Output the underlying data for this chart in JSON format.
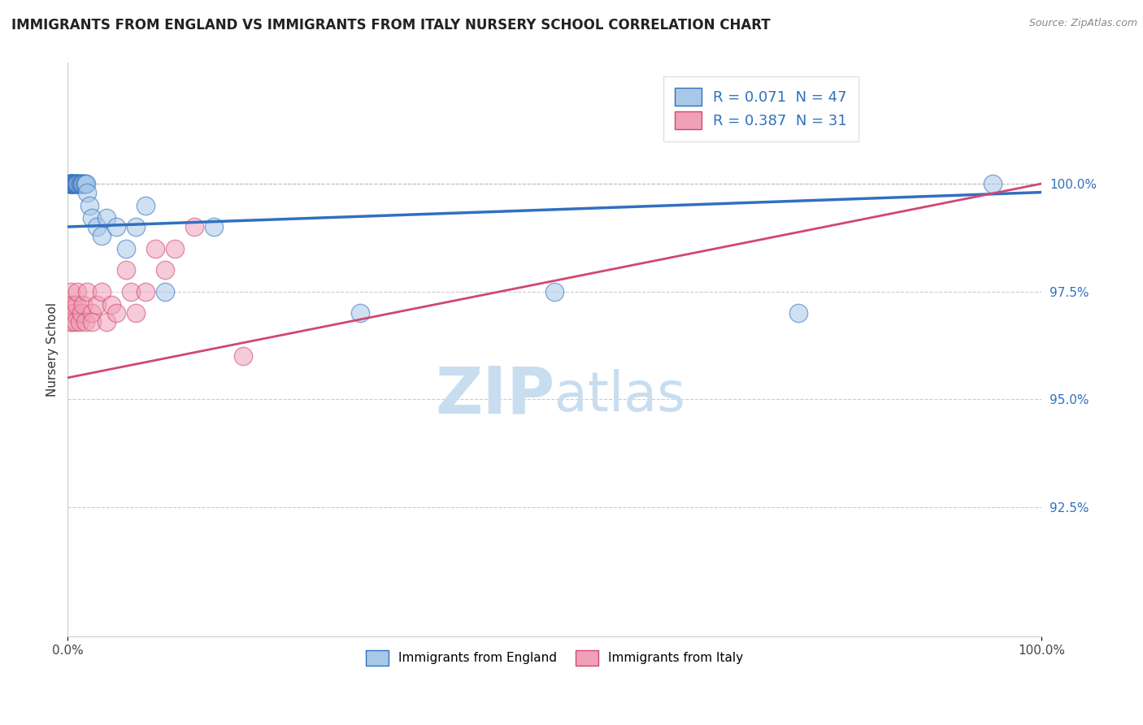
{
  "title": "IMMIGRANTS FROM ENGLAND VS IMMIGRANTS FROM ITALY NURSERY SCHOOL CORRELATION CHART",
  "source": "Source: ZipAtlas.com",
  "ylabel": "Nursery School",
  "england_R": 0.071,
  "england_N": 47,
  "italy_R": 0.387,
  "italy_N": 31,
  "england_color": "#a8c8e8",
  "italy_color": "#f0a0b8",
  "england_line_color": "#3070c0",
  "italy_line_color": "#d04870",
  "watermark_zip": "ZIP",
  "watermark_atlas": "atlas",
  "watermark_color": "#c8ddf0",
  "xmin": 0.0,
  "xmax": 1.0,
  "ymin": 0.895,
  "ymax": 1.028,
  "yticks": [
    0.925,
    0.95,
    0.975,
    1.0
  ],
  "ytick_labels": [
    "92.5%",
    "95.0%",
    "97.5%",
    "100.0%"
  ],
  "england_x": [
    0.001,
    0.002,
    0.002,
    0.003,
    0.003,
    0.003,
    0.004,
    0.004,
    0.004,
    0.005,
    0.005,
    0.006,
    0.006,
    0.007,
    0.007,
    0.008,
    0.008,
    0.009,
    0.009,
    0.01,
    0.01,
    0.011,
    0.012,
    0.013,
    0.014,
    0.015,
    0.015,
    0.016,
    0.017,
    0.018,
    0.019,
    0.02,
    0.022,
    0.025,
    0.03,
    0.035,
    0.04,
    0.05,
    0.06,
    0.07,
    0.08,
    0.1,
    0.15,
    0.3,
    0.5,
    0.75,
    0.95
  ],
  "england_y": [
    1.0,
    1.0,
    1.0,
    1.0,
    1.0,
    1.0,
    1.0,
    1.0,
    1.0,
    1.0,
    1.0,
    1.0,
    1.0,
    1.0,
    1.0,
    1.0,
    1.0,
    1.0,
    1.0,
    1.0,
    1.0,
    1.0,
    1.0,
    1.0,
    1.0,
    1.0,
    1.0,
    1.0,
    1.0,
    1.0,
    1.0,
    0.998,
    0.995,
    0.992,
    0.99,
    0.988,
    0.992,
    0.99,
    0.985,
    0.99,
    0.995,
    0.975,
    0.99,
    0.97,
    0.975,
    0.97,
    1.0
  ],
  "italy_x": [
    0.001,
    0.002,
    0.003,
    0.004,
    0.005,
    0.006,
    0.007,
    0.008,
    0.009,
    0.01,
    0.012,
    0.014,
    0.016,
    0.018,
    0.02,
    0.025,
    0.025,
    0.03,
    0.035,
    0.04,
    0.045,
    0.05,
    0.06,
    0.065,
    0.07,
    0.08,
    0.09,
    0.1,
    0.11,
    0.13,
    0.18
  ],
  "italy_y": [
    0.972,
    0.968,
    0.975,
    0.97,
    0.968,
    0.972,
    0.97,
    0.968,
    0.972,
    0.975,
    0.968,
    0.97,
    0.972,
    0.968,
    0.975,
    0.97,
    0.968,
    0.972,
    0.975,
    0.968,
    0.972,
    0.97,
    0.98,
    0.975,
    0.97,
    0.975,
    0.985,
    0.98,
    0.985,
    0.99,
    0.96
  ],
  "england_trend_y_start": 0.99,
  "england_trend_y_end": 0.998,
  "italy_trend_y_start": 0.955,
  "italy_trend_y_end": 1.0,
  "title_fontsize": 12,
  "axis_label_fontsize": 11,
  "tick_fontsize": 11,
  "legend_fontsize": 13
}
